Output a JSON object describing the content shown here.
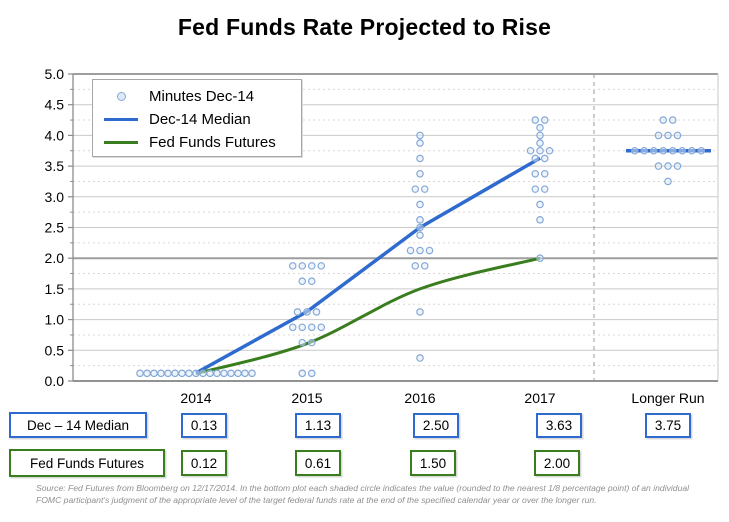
{
  "title": "Fed Funds Rate Projected to Rise",
  "legend": {
    "items": [
      {
        "label": "Minutes Dec-14",
        "marker": "dot"
      },
      {
        "label": "Dec-14 Median",
        "marker": "line",
        "color": "#2f6bce"
      },
      {
        "label": "Fed Funds Futures",
        "marker": "line",
        "color": "#3a7d1e"
      }
    ]
  },
  "chart_data": {
    "type": "scatter",
    "title": "Fed Funds Rate Projected to Rise",
    "categories": [
      "2014",
      "2015",
      "2016",
      "2017",
      "Longer Run"
    ],
    "ylim": [
      0,
      5
    ],
    "y_tick_step": 0.5,
    "y_tick_labels": [
      "0.0",
      "0.5",
      "1.0",
      "1.5",
      "2.0",
      "2.5",
      "3.0",
      "3.5",
      "4.0",
      "4.5",
      "5.0"
    ],
    "grid": "on",
    "legend_position": "top-left",
    "series": [
      {
        "name": "Minutes Dec-14",
        "type": "scatter",
        "dots": [
          {
            "category": "2014",
            "value": 0.125,
            "count": 17
          },
          {
            "category": "2015",
            "value": 1.875,
            "count": 4
          },
          {
            "category": "2015",
            "value": 1.625,
            "count": 2
          },
          {
            "category": "2015",
            "value": 1.125,
            "count": 3
          },
          {
            "category": "2015",
            "value": 0.875,
            "count": 4
          },
          {
            "category": "2015",
            "value": 0.625,
            "count": 2
          },
          {
            "category": "2015",
            "value": 0.125,
            "count": 2
          },
          {
            "category": "2016",
            "value": 4.0,
            "count": 1
          },
          {
            "category": "2016",
            "value": 3.875,
            "count": 1
          },
          {
            "category": "2016",
            "value": 3.625,
            "count": 1
          },
          {
            "category": "2016",
            "value": 3.375,
            "count": 1
          },
          {
            "category": "2016",
            "value": 3.125,
            "count": 2
          },
          {
            "category": "2016",
            "value": 2.875,
            "count": 1
          },
          {
            "category": "2016",
            "value": 2.625,
            "count": 1
          },
          {
            "category": "2016",
            "value": 2.5,
            "count": 1
          },
          {
            "category": "2016",
            "value": 2.375,
            "count": 1
          },
          {
            "category": "2016",
            "value": 2.125,
            "count": 3
          },
          {
            "category": "2016",
            "value": 1.875,
            "count": 2
          },
          {
            "category": "2016",
            "value": 1.125,
            "count": 1
          },
          {
            "category": "2016",
            "value": 0.375,
            "count": 1
          },
          {
            "category": "2017",
            "value": 4.25,
            "count": 2
          },
          {
            "category": "2017",
            "value": 4.125,
            "count": 1
          },
          {
            "category": "2017",
            "value": 4.0,
            "count": 1
          },
          {
            "category": "2017",
            "value": 3.875,
            "count": 1
          },
          {
            "category": "2017",
            "value": 3.75,
            "count": 3
          },
          {
            "category": "2017",
            "value": 3.625,
            "count": 2
          },
          {
            "category": "2017",
            "value": 3.375,
            "count": 2
          },
          {
            "category": "2017",
            "value": 3.125,
            "count": 2
          },
          {
            "category": "2017",
            "value": 2.875,
            "count": 1
          },
          {
            "category": "2017",
            "value": 2.625,
            "count": 1
          },
          {
            "category": "2017",
            "value": 2.0,
            "count": 1
          },
          {
            "category": "Longer Run",
            "value": 4.25,
            "count": 2
          },
          {
            "category": "Longer Run",
            "value": 4.0,
            "count": 3
          },
          {
            "category": "Longer Run",
            "value": 3.75,
            "count": 8
          },
          {
            "category": "Longer Run",
            "value": 3.5,
            "count": 3
          },
          {
            "category": "Longer Run",
            "value": 3.25,
            "count": 1
          }
        ]
      },
      {
        "name": "Dec-14 Median",
        "type": "line",
        "x": [
          "2014",
          "2015",
          "2016",
          "2017"
        ],
        "values": [
          0.13,
          1.13,
          2.5,
          3.63
        ],
        "longer_run_value": 3.75,
        "color": "#2f6bce"
      },
      {
        "name": "Fed Funds Futures",
        "type": "line",
        "x": [
          "2014",
          "2015",
          "2016",
          "2017"
        ],
        "values": [
          0.12,
          0.61,
          1.5,
          2.0
        ],
        "color": "#3a7d1e"
      }
    ]
  },
  "table": {
    "rows": [
      {
        "label": "Dec – 14 Median",
        "values": [
          "0.13",
          "1.13",
          "2.50",
          "3.63",
          "3.75"
        ]
      },
      {
        "label": "Fed Funds Futures",
        "values": [
          "0.12",
          "0.61",
          "1.50",
          "2.00"
        ]
      }
    ]
  },
  "source_note": "Source: Fed Futures from Bloomberg on 12/17/2014. In the bottom plot each shaded circle indicates the value (rounded to the nearest 1/8 percentage point) of an individual FOMC participant's judgment of the appropriate level of the target federal funds rate at the end of the specified calendar year or over the longer run.",
  "colors": {
    "median_line": "#2f6bce",
    "futures_line": "#3a7d1e",
    "dot_stroke": "#85a9d8",
    "dot_fill": "#dfe9f6",
    "grid_major": "#9e9e9e",
    "grid_half": "#c9c9c9",
    "grid_quarter": "#e2d4d4",
    "axis": "#8c8c8c",
    "separator": "#9a9a9a"
  }
}
